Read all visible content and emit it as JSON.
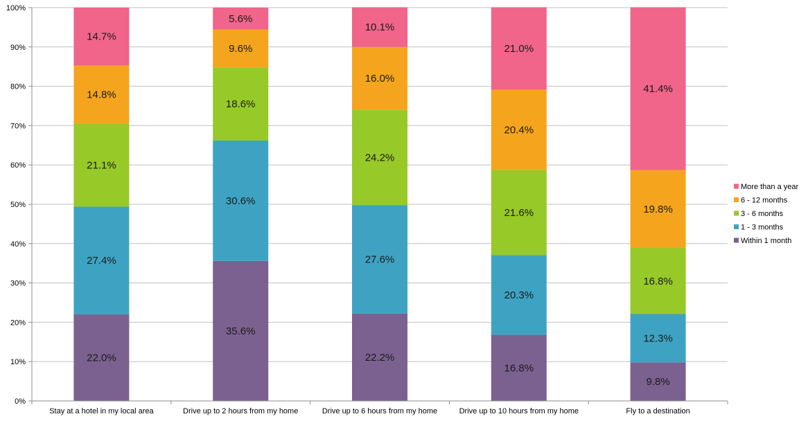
{
  "chart_data": {
    "type": "bar",
    "stacked": true,
    "categories": [
      "Stay at a hotel in my local area",
      "Drive up to 2 hours from my home",
      "Drive up to 6 hours from my home",
      "Drive up to 10 hours from my home",
      "Fly to a destination"
    ],
    "series": [
      {
        "name": "Within 1 month",
        "color": "#7b6190",
        "values": [
          22.0,
          35.6,
          22.2,
          16.8,
          9.8
        ],
        "labels": [
          "22.0%",
          "35.6%",
          "22.2%",
          "16.8%",
          "9.8%"
        ]
      },
      {
        "name": "1 - 3 months",
        "color": "#3ea3c3",
        "values": [
          27.4,
          30.6,
          27.6,
          20.3,
          12.3
        ],
        "labels": [
          "27.4%",
          "30.6%",
          "27.6%",
          "20.3%",
          "12.3%"
        ]
      },
      {
        "name": "3 - 6 months",
        "color": "#97c928",
        "values": [
          21.1,
          18.6,
          24.2,
          21.6,
          16.8
        ],
        "labels": [
          "21.1%",
          "18.6%",
          "24.2%",
          "21.6%",
          "16.8%"
        ]
      },
      {
        "name": "6 - 12 months",
        "color": "#f4a51d",
        "values": [
          14.8,
          9.6,
          16.0,
          20.4,
          19.8
        ],
        "labels": [
          "14.8%",
          "9.6%",
          "16.0%",
          "20.4%",
          "19.8%"
        ]
      },
      {
        "name": "More than a year",
        "color": "#f06589",
        "values": [
          14.7,
          5.6,
          10.1,
          21.0,
          41.4
        ],
        "labels": [
          "14.7%",
          "5.6%",
          "10.1%",
          "21.0%",
          "41.4%"
        ]
      }
    ],
    "y_ticks": [
      "0%",
      "10%",
      "20%",
      "30%",
      "40%",
      "50%",
      "60%",
      "70%",
      "80%",
      "90%",
      "100%"
    ],
    "ylim": [
      0,
      100
    ],
    "grid": true,
    "legend_position": "right"
  }
}
